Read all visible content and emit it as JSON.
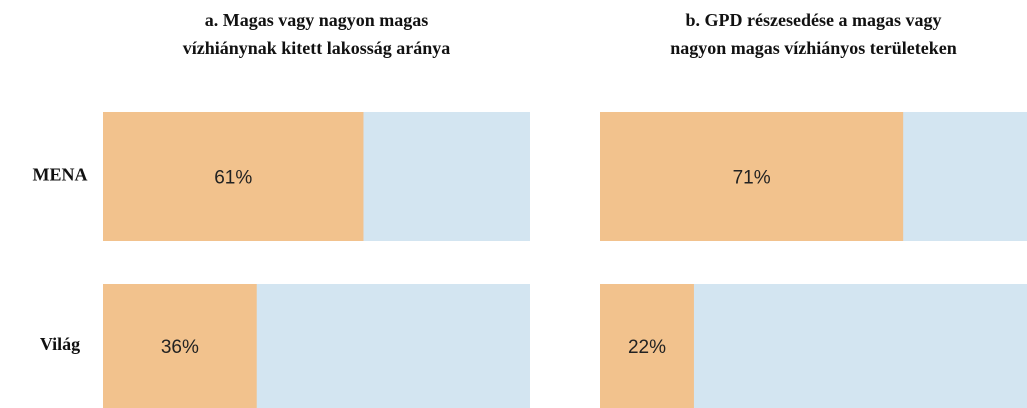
{
  "chart_data": [
    {
      "type": "bar",
      "orientation": "horizontal",
      "title": [
        "a. Magas vagy nagyon magas",
        "vízhiánynak kitett lakosság aránya"
      ],
      "categories": [
        "MENA",
        "Világ"
      ],
      "values": [
        61,
        36
      ],
      "value_labels": [
        "61%",
        "36%"
      ],
      "color": "#f2c28d",
      "background_color": "#d3e5f1",
      "xlim": [
        0,
        100
      ]
    },
    {
      "type": "bar",
      "orientation": "horizontal",
      "title": [
        "b. GPD részesedése a magas vagy",
        "nagyon magas vízhiányos területeken"
      ],
      "values": [
        71,
        22
      ],
      "value_labels": [
        "71%",
        "22%"
      ],
      "color": "#f2c28d",
      "background_color": "#d3e5f1",
      "xlim": [
        0,
        100
      ]
    }
  ]
}
